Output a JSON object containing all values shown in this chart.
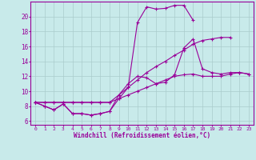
{
  "xlabel": "Windchill (Refroidissement éolien,°C)",
  "background_color": "#c8eaea",
  "line_color": "#990099",
  "grid_color": "#aacccc",
  "xlim": [
    -0.5,
    23.5
  ],
  "ylim": [
    5.5,
    22.0
  ],
  "xticks": [
    0,
    1,
    2,
    3,
    4,
    5,
    6,
    7,
    8,
    9,
    10,
    11,
    12,
    13,
    14,
    15,
    16,
    17,
    18,
    19,
    20,
    21,
    22,
    23
  ],
  "yticks": [
    6,
    8,
    10,
    12,
    14,
    16,
    18,
    20
  ],
  "series": [
    {
      "x": [
        0,
        1,
        2,
        3,
        4,
        5,
        6,
        7,
        8,
        9,
        10,
        11,
        12,
        13,
        14,
        15,
        16,
        17,
        18,
        19,
        20,
        21,
        22,
        23
      ],
      "y": [
        8.5,
        8.0,
        7.5,
        8.3,
        7.0,
        7.0,
        6.8,
        7.0,
        7.3,
        9.5,
        11.0,
        12.0,
        11.8,
        11.0,
        11.2,
        12.2,
        15.8,
        17.0,
        13.0,
        12.5,
        12.3,
        12.5,
        12.5,
        12.3
      ]
    },
    {
      "x": [
        0,
        1,
        2,
        3,
        4,
        5,
        6,
        7,
        8,
        9,
        10,
        11,
        12,
        13,
        14,
        15,
        16,
        17
      ],
      "y": [
        8.5,
        8.0,
        7.5,
        8.3,
        7.0,
        7.0,
        6.8,
        7.0,
        7.3,
        9.0,
        10.5,
        19.2,
        21.3,
        21.0,
        21.1,
        21.5,
        21.5,
        19.5
      ]
    },
    {
      "x": [
        0,
        1,
        2,
        3,
        4,
        5,
        6,
        7,
        8,
        9,
        10,
        11,
        12,
        13,
        14,
        15,
        16,
        17,
        18,
        19,
        20,
        21
      ],
      "y": [
        8.5,
        8.5,
        8.5,
        8.5,
        8.5,
        8.5,
        8.5,
        8.5,
        8.5,
        9.5,
        10.5,
        11.5,
        12.5,
        13.3,
        14.0,
        14.8,
        15.5,
        16.3,
        16.8,
        17.0,
        17.2,
        17.2
      ]
    },
    {
      "x": [
        0,
        1,
        2,
        3,
        4,
        5,
        6,
        7,
        8,
        9,
        10,
        11,
        12,
        13,
        14,
        15,
        16,
        17,
        18,
        19,
        20,
        21,
        22,
        23
      ],
      "y": [
        8.5,
        8.5,
        8.5,
        8.5,
        8.5,
        8.5,
        8.5,
        8.5,
        8.5,
        9.0,
        9.5,
        10.0,
        10.5,
        11.0,
        11.5,
        12.0,
        12.2,
        12.3,
        12.0,
        12.0,
        12.0,
        12.3,
        12.5,
        12.3
      ]
    }
  ]
}
